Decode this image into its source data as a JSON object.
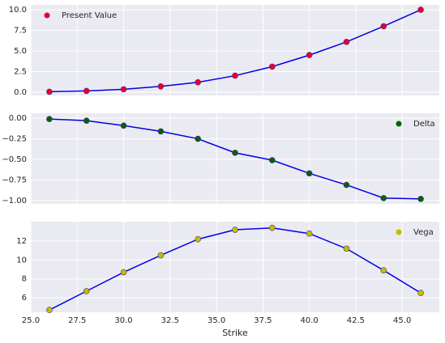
{
  "chart_data": [
    {
      "type": "line",
      "legend": "upper left",
      "grid": true,
      "x": [
        26,
        28,
        30,
        32,
        34,
        36,
        38,
        40,
        42,
        44,
        46
      ],
      "xlim": [
        25,
        47
      ],
      "series": [
        {
          "name": "Present Value",
          "color": "#e8002a",
          "line_color": "#0000e6",
          "values": [
            0.05,
            0.15,
            0.35,
            0.7,
            1.2,
            2.0,
            3.1,
            4.5,
            6.1,
            8.0,
            10.0
          ]
        }
      ],
      "ylim": [
        -0.4,
        10.6
      ],
      "yticks": [
        {
          "value": 0,
          "label": "0.0"
        },
        2.5,
        {
          "value": 5,
          "label": "5.0"
        },
        7.5,
        {
          "value": 10,
          "label": "10.0"
        }
      ]
    },
    {
      "type": "line",
      "legend": "upper right",
      "grid": true,
      "x": [
        26,
        28,
        30,
        32,
        34,
        36,
        38,
        40,
        42,
        44,
        46
      ],
      "xlim": [
        25,
        47
      ],
      "series": [
        {
          "name": "Delta",
          "color": "#006400",
          "line_color": "#0000e6",
          "values": [
            -0.01,
            -0.03,
            -0.09,
            -0.16,
            -0.25,
            -0.42,
            -0.51,
            -0.67,
            -0.81,
            -0.97,
            -0.98
          ]
        }
      ],
      "ylim": [
        -1.04,
        0.06
      ],
      "yticks": [
        {
          "value": 0,
          "label": "0.00"
        },
        {
          "value": -0.25,
          "label": "−0.25"
        },
        {
          "value": -0.5,
          "label": "−0.50"
        },
        {
          "value": -0.75,
          "label": "−0.75"
        },
        {
          "value": -1,
          "label": "−1.00"
        }
      ]
    },
    {
      "type": "line",
      "legend": "upper right",
      "grid": true,
      "x": [
        26,
        28,
        30,
        32,
        34,
        36,
        38,
        40,
        42,
        44,
        46
      ],
      "xlim": [
        25,
        47
      ],
      "xlabel": "Strike",
      "xticks": [
        {
          "value": 25,
          "label": "25.0"
        },
        27.5,
        {
          "value": 30,
          "label": "30.0"
        },
        32.5,
        {
          "value": 35,
          "label": "35.0"
        },
        37.5,
        {
          "value": 40,
          "label": "40.0"
        },
        42.5,
        {
          "value": 45,
          "label": "45.0"
        }
      ],
      "series": [
        {
          "name": "Vega",
          "color": "#bfbf00",
          "line_color": "#0000e6",
          "values": [
            4.7,
            6.7,
            8.7,
            10.5,
            12.2,
            13.2,
            13.4,
            12.8,
            11.2,
            8.9,
            6.5
          ]
        }
      ],
      "ylim": [
        4.46,
        14.06
      ],
      "yticks": [
        6,
        8,
        10,
        12
      ]
    }
  ]
}
